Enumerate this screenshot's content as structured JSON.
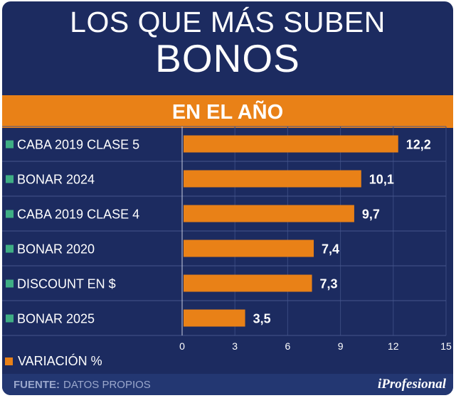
{
  "title": {
    "line1": "LOS QUE MÁS SUBEN",
    "line2": "BONOS"
  },
  "banner": "EN EL AÑO",
  "legend_label": "VARIACIÓN %",
  "footer": {
    "label": "FUENTE:",
    "text": "DATOS PROPIOS"
  },
  "brand": "iProfesional",
  "colors": {
    "background": "#1c2b60",
    "bar": "#e98117",
    "marker": "#3fae84",
    "text": "#ffffff"
  },
  "chart_data": {
    "type": "bar",
    "orientation": "horizontal",
    "categories": [
      "CABA 2019 CLASE 5",
      "BONAR 2024",
      "CABA 2019 CLASE 4",
      "BONAR 2020",
      "DISCOUNT EN $",
      "BONAR 2025"
    ],
    "values": [
      12.2,
      10.1,
      9.7,
      7.4,
      7.3,
      3.5
    ],
    "value_labels": [
      "12,2",
      "10,1",
      "9,7",
      "7,4",
      "7,3",
      "3,5"
    ],
    "xlim": [
      0,
      15
    ],
    "xticks": [
      0,
      3,
      6,
      9,
      12,
      15
    ],
    "grid": true,
    "legend": "bottom-left"
  }
}
